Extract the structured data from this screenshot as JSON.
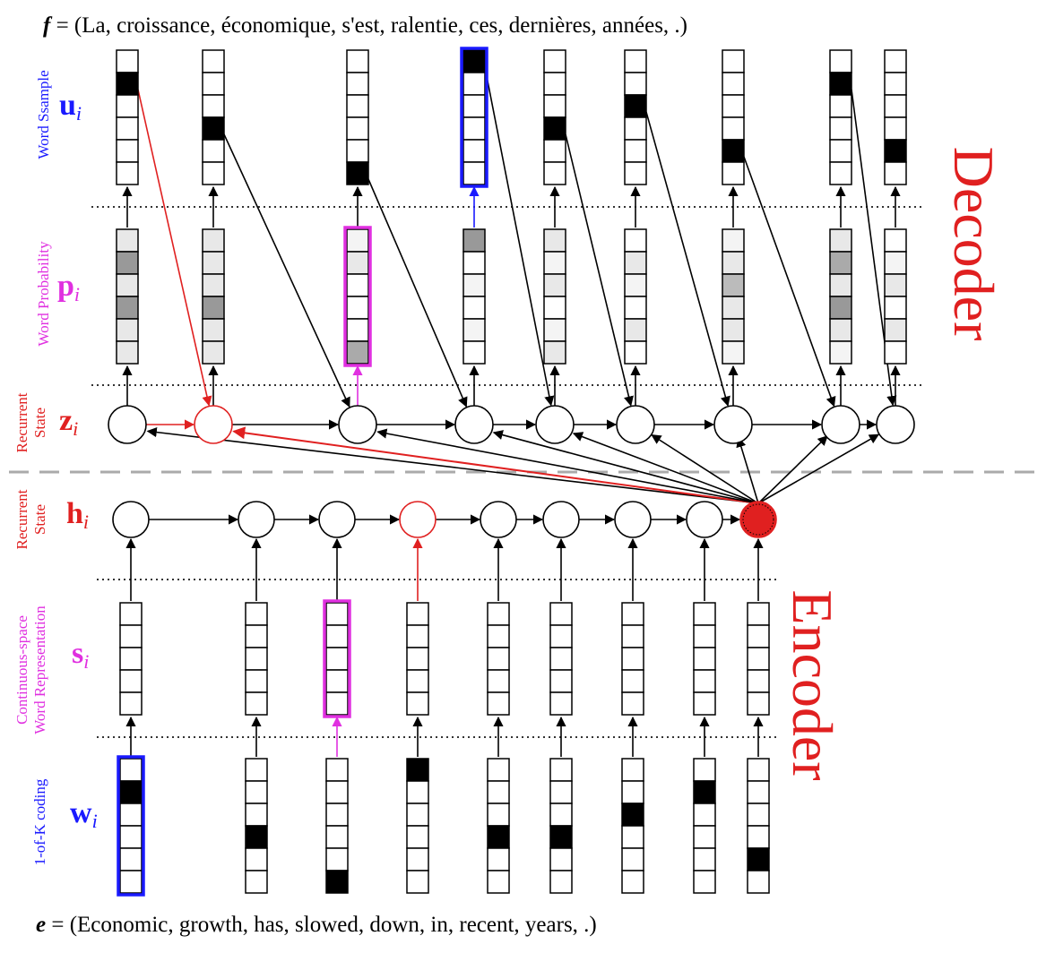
{
  "top_sentence": {
    "var": "f",
    "text": " = (La, croissance, économique, s'est, ralentie, ces, dernières, années, .)"
  },
  "bottom_sentence": {
    "var": "e",
    "text": " = (Economic, growth, has, slowed, down, in, recent, years, .)"
  },
  "section_labels": {
    "decoder": "Decoder",
    "encoder": "Encoder"
  },
  "rows": {
    "u": {
      "symbol": "u",
      "subscript": "i",
      "caption": [
        "Word Ssample"
      ],
      "color": "#1a1aff"
    },
    "p": {
      "symbol": "p",
      "subscript": "i",
      "caption": [
        "Word Probability"
      ],
      "color": "#e030e0"
    },
    "z": {
      "symbol": "z",
      "subscript": "i",
      "caption": [
        "Recurrent",
        "State"
      ],
      "color": "#e02020"
    },
    "h": {
      "symbol": "h",
      "subscript": "i",
      "caption": [
        "Recurrent",
        "State"
      ],
      "color": "#e02020"
    },
    "s": {
      "symbol": "s",
      "subscript": "i",
      "caption": [
        "Continuous-space",
        "Word Representation"
      ],
      "color": "#e030e0"
    },
    "w": {
      "symbol": "w",
      "subscript": "i",
      "caption": [
        "1-of-K coding"
      ],
      "color": "#1a1aff"
    }
  },
  "decoder": {
    "sample_active_index": [
      1,
      3,
      5,
      0,
      3,
      2,
      4,
      1,
      4
    ],
    "probability_shades": [
      [
        "#e8e8e8",
        "#999999",
        "#e8e8e8",
        "#999999",
        "#e8e8e8",
        "#e8e8e8"
      ],
      [
        "#e8e8e8",
        "#e8e8e8",
        "#e8e8e8",
        "#999999",
        "#e8e8e8",
        "#e8e8e8"
      ],
      [
        "#f4f4f4",
        "#e8e8e8",
        "#ffffff",
        "#ffffff",
        "#ffffff",
        "#aaaaaa"
      ],
      [
        "#999999",
        "#ffffff",
        "#f4f4f4",
        "#ffffff",
        "#f4f4f4",
        "#ffffff"
      ],
      [
        "#e8e8e8",
        "#f4f4f4",
        "#e8e8e8",
        "#ffffff",
        "#f4f4f4",
        "#e8e8e8"
      ],
      [
        "#ffffff",
        "#e8e8e8",
        "#f4f4f4",
        "#ffffff",
        "#e8e8e8",
        "#ffffff"
      ],
      [
        "#f4f4f4",
        "#e8e8e8",
        "#bbbbbb",
        "#e8e8e8",
        "#e8e8e8",
        "#f4f4f4"
      ],
      [
        "#e8e8e8",
        "#aaaaaa",
        "#e8e8e8",
        "#999999",
        "#e8e8e8",
        "#f4f4f4"
      ],
      [
        "#ffffff",
        "#f4f4f4",
        "#e8e8e8",
        "#ffffff",
        "#e8e8e8",
        "#ffffff"
      ]
    ],
    "highlight_sample_column": 3,
    "highlight_probability_column": 2,
    "highlight_state_column": 1
  },
  "encoder": {
    "onehot_active_index": [
      1,
      3,
      5,
      0,
      3,
      3,
      2,
      1,
      4
    ],
    "highlight_onehot_column": 0,
    "highlight_representation_column": 2,
    "highlight_state_column": 3,
    "filled_state_column": 8
  },
  "colors": {
    "black": "#000000",
    "red": "#e02020",
    "blue": "#1a1aff",
    "magenta": "#e030e0",
    "filled_cell": "#000000",
    "separator": "#aaaaaa"
  }
}
